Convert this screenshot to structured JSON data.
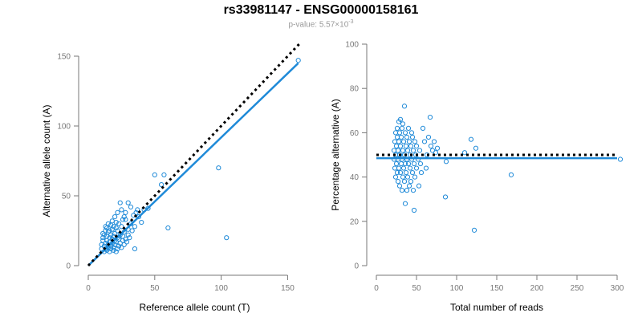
{
  "header": {
    "title": "rs33981147 - ENSG00000158161",
    "pvalue_prefix": "p-value: 5.57×10",
    "pvalue_exponent": "-3"
  },
  "colors": {
    "points": "#1f8ad8",
    "fit": "#1f8ad8",
    "reference": "#000000",
    "axis": "#777777"
  },
  "chart_data": [
    {
      "type": "scatter",
      "title": "",
      "xlabel": "Reference allele count (T)",
      "ylabel": "Alternative allele count (A)",
      "xlim": [
        0,
        160
      ],
      "ylim": [
        0,
        150
      ],
      "xticks": [
        0,
        50,
        100,
        150
      ],
      "yticks": [
        0,
        50,
        100,
        150
      ],
      "grid": false,
      "reference_line": {
        "style": "dotted",
        "from": [
          0,
          0
        ],
        "to": [
          160,
          160
        ]
      },
      "fit_line": {
        "style": "solid",
        "from": [
          0,
          0
        ],
        "to": [
          158,
          145
        ]
      },
      "points": [
        [
          10,
          12
        ],
        [
          10,
          15
        ],
        [
          11,
          18
        ],
        [
          11,
          20
        ],
        [
          12,
          10
        ],
        [
          12,
          14
        ],
        [
          12,
          22
        ],
        [
          13,
          12
        ],
        [
          13,
          16
        ],
        [
          13,
          25
        ],
        [
          14,
          11
        ],
        [
          14,
          18
        ],
        [
          14,
          21
        ],
        [
          15,
          13
        ],
        [
          15,
          15
        ],
        [
          15,
          24
        ],
        [
          16,
          10
        ],
        [
          16,
          17
        ],
        [
          16,
          20
        ],
        [
          17,
          12
        ],
        [
          17,
          14
        ],
        [
          17,
          22
        ],
        [
          18,
          16
        ],
        [
          18,
          19
        ],
        [
          18,
          26
        ],
        [
          19,
          11
        ],
        [
          19,
          13
        ],
        [
          19,
          21
        ],
        [
          20,
          15
        ],
        [
          20,
          18
        ],
        [
          20,
          23
        ],
        [
          21,
          10
        ],
        [
          21,
          17
        ],
        [
          21,
          27
        ],
        [
          22,
          12
        ],
        [
          22,
          20
        ],
        [
          22,
          25
        ],
        [
          23,
          14
        ],
        [
          23,
          19
        ],
        [
          24,
          16
        ],
        [
          24,
          22
        ],
        [
          25,
          13
        ],
        [
          25,
          28
        ],
        [
          26,
          18
        ],
        [
          26,
          21
        ],
        [
          27,
          15
        ],
        [
          27,
          24
        ],
        [
          28,
          19
        ],
        [
          28,
          33
        ],
        [
          29,
          17
        ],
        [
          30,
          22
        ],
        [
          30,
          26
        ],
        [
          31,
          20
        ],
        [
          32,
          30
        ],
        [
          33,
          25
        ],
        [
          34,
          36
        ],
        [
          35,
          12
        ],
        [
          35,
          28
        ],
        [
          36,
          38
        ],
        [
          37,
          40
        ],
        [
          38,
          35
        ],
        [
          40,
          31
        ],
        [
          42,
          40
        ],
        [
          30,
          45
        ],
        [
          24,
          45
        ],
        [
          45,
          41
        ],
        [
          50,
          65
        ],
        [
          55,
          58
        ],
        [
          57,
          65
        ],
        [
          60,
          27
        ],
        [
          98,
          70
        ],
        [
          104,
          20
        ],
        [
          158,
          147
        ],
        [
          13,
          28
        ],
        [
          15,
          30
        ],
        [
          18,
          32
        ],
        [
          20,
          35
        ],
        [
          22,
          38
        ],
        [
          25,
          40
        ],
        [
          28,
          38
        ],
        [
          32,
          42
        ],
        [
          16,
          25
        ],
        [
          19,
          28
        ],
        [
          23,
          30
        ],
        [
          26,
          33
        ],
        [
          11,
          23
        ],
        [
          14,
          27
        ],
        [
          17,
          29
        ],
        [
          21,
          31
        ],
        [
          27,
          35
        ]
      ]
    },
    {
      "type": "scatter",
      "title": "",
      "xlabel": "Total number of reads",
      "ylabel": "Percentage alternative (A)",
      "xlim": [
        0,
        300
      ],
      "ylim": [
        0,
        100
      ],
      "xticks": [
        0,
        50,
        100,
        150,
        200,
        250,
        300
      ],
      "yticks": [
        0,
        20,
        40,
        60,
        80,
        100
      ],
      "grid": false,
      "reference_line": {
        "style": "dotted",
        "from": [
          0,
          50
        ],
        "to": [
          300,
          50
        ]
      },
      "fit_line": {
        "style": "solid",
        "from": [
          0,
          48.5
        ],
        "to": [
          300,
          48.5
        ]
      },
      "points": [
        [
          22,
          48
        ],
        [
          22,
          52
        ],
        [
          23,
          44
        ],
        [
          23,
          56
        ],
        [
          24,
          40
        ],
        [
          24,
          50
        ],
        [
          24,
          60
        ],
        [
          25,
          46
        ],
        [
          25,
          54
        ],
        [
          26,
          42
        ],
        [
          26,
          58
        ],
        [
          26,
          62
        ],
        [
          27,
          38
        ],
        [
          27,
          48
        ],
        [
          27,
          52
        ],
        [
          28,
          44
        ],
        [
          28,
          56
        ],
        [
          28,
          65
        ],
        [
          29,
          36
        ],
        [
          29,
          50
        ],
        [
          29,
          60
        ],
        [
          30,
          42
        ],
        [
          30,
          54
        ],
        [
          30,
          66
        ],
        [
          31,
          46
        ],
        [
          31,
          58
        ],
        [
          32,
          34
        ],
        [
          32,
          48
        ],
        [
          32,
          62
        ],
        [
          33,
          40
        ],
        [
          33,
          52
        ],
        [
          33,
          64
        ],
        [
          34,
          44
        ],
        [
          34,
          56
        ],
        [
          35,
          38
        ],
        [
          35,
          50
        ],
        [
          35,
          72
        ],
        [
          36,
          28
        ],
        [
          36,
          46
        ],
        [
          36,
          60
        ],
        [
          37,
          42
        ],
        [
          37,
          54
        ],
        [
          38,
          34
        ],
        [
          38,
          48
        ],
        [
          38,
          58
        ],
        [
          39,
          40
        ],
        [
          39,
          52
        ],
        [
          40,
          46
        ],
        [
          40,
          62
        ],
        [
          41,
          36
        ],
        [
          41,
          56
        ],
        [
          42,
          44
        ],
        [
          42,
          50
        ],
        [
          43,
          38
        ],
        [
          43,
          54
        ],
        [
          44,
          48
        ],
        [
          44,
          60
        ],
        [
          45,
          42
        ],
        [
          45,
          58
        ],
        [
          46,
          34
        ],
        [
          46,
          52
        ],
        [
          47,
          25
        ],
        [
          47,
          46
        ],
        [
          48,
          40
        ],
        [
          48,
          56
        ],
        [
          49,
          50
        ],
        [
          50,
          44
        ],
        [
          50,
          54
        ],
        [
          52,
          48
        ],
        [
          53,
          36
        ],
        [
          54,
          52
        ],
        [
          55,
          46
        ],
        [
          56,
          42
        ],
        [
          58,
          62
        ],
        [
          60,
          56
        ],
        [
          62,
          44
        ],
        [
          63,
          50
        ],
        [
          65,
          58
        ],
        [
          67,
          67
        ],
        [
          68,
          54
        ],
        [
          70,
          52
        ],
        [
          72,
          56
        ],
        [
          74,
          51
        ],
        [
          76,
          53
        ],
        [
          86,
          31
        ],
        [
          87,
          47
        ],
        [
          110,
          51
        ],
        [
          118,
          57
        ],
        [
          122,
          16
        ],
        [
          124,
          53
        ],
        [
          168,
          41
        ],
        [
          304,
          48
        ]
      ]
    }
  ]
}
